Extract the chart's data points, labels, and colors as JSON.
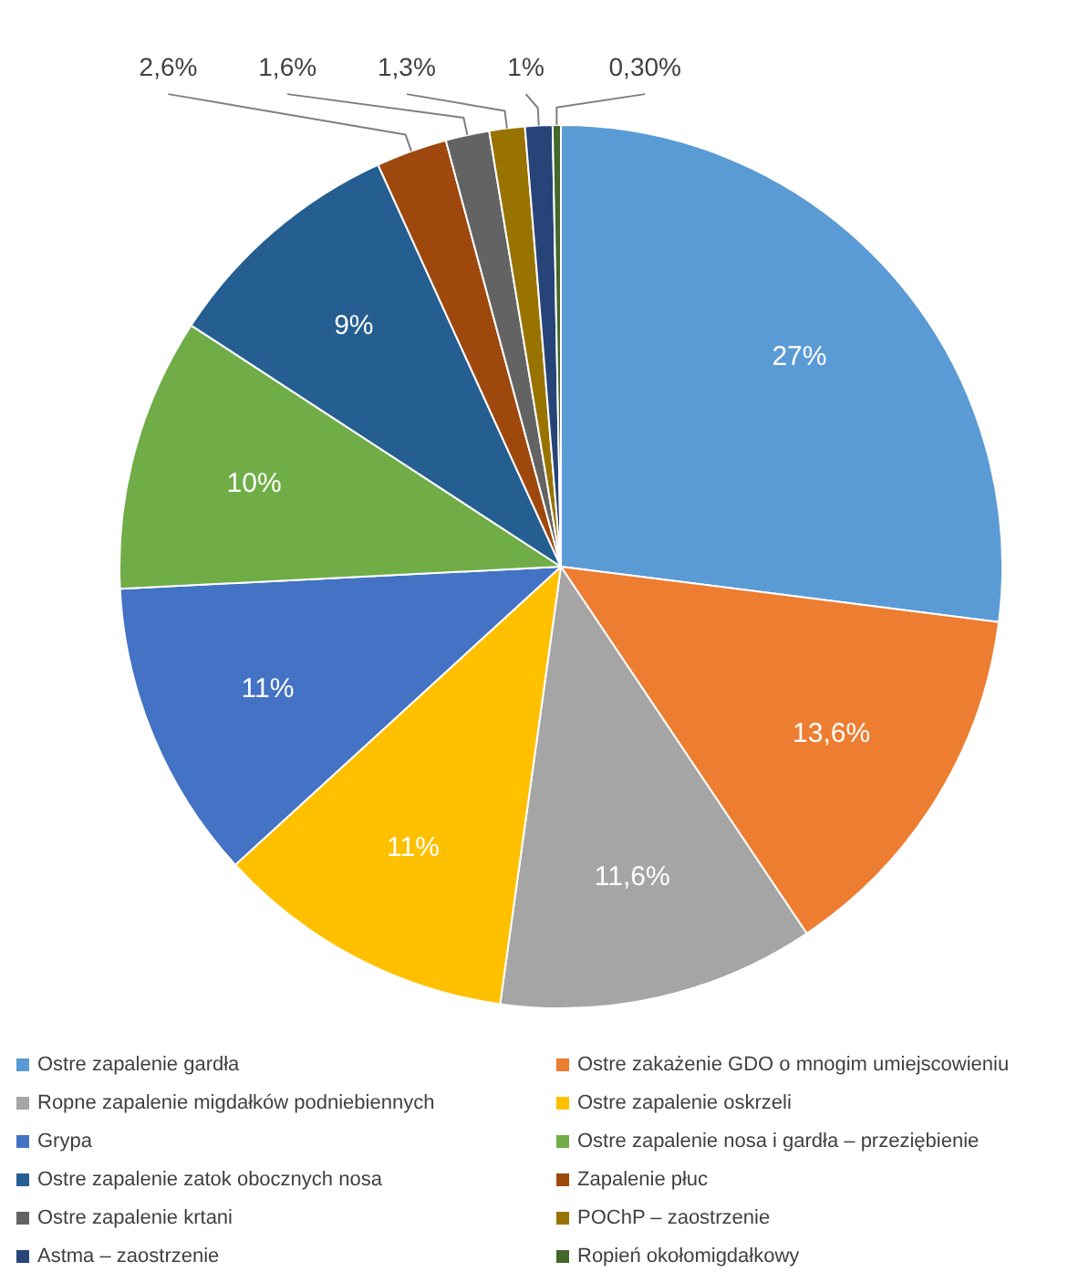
{
  "chart_data": {
    "type": "pie",
    "categories": [
      "Ostre zapalenie gardła",
      "Ostre zakażenie GDO o mnogim umiejscowieniu",
      "Ropne zapalenie migdałków podniebiennych",
      "Ostre zapalenie oskrzeli",
      "Grypa",
      "Ostre zapalenie nosa i gardła – przeziębienie",
      "Ostre zapalenie zatok obocznych nosa",
      "Zapalenie płuc",
      "Ostre zapalenie krtani",
      "POChP – zaostrzenie",
      "Astma – zaostrzenie",
      "Ropień okołomigdałkowy"
    ],
    "values": [
      27,
      13.6,
      11.6,
      11,
      11,
      10,
      9,
      2.6,
      1.6,
      1.3,
      1,
      0.3
    ],
    "value_labels": [
      "27%",
      "13,6%",
      "11,6%",
      "11%",
      "11%",
      "10%",
      "9%",
      "2,6%",
      "1,6%",
      "1,3%",
      "1%",
      "0,30%"
    ],
    "colors": [
      "#5b9bd5",
      "#ed7d31",
      "#a5a5a5",
      "#ffc000",
      "#4472c4",
      "#70ad47",
      "#255e91",
      "#9e480e",
      "#636363",
      "#997300",
      "#264478",
      "#43682b"
    ],
    "legend": "bottom"
  }
}
